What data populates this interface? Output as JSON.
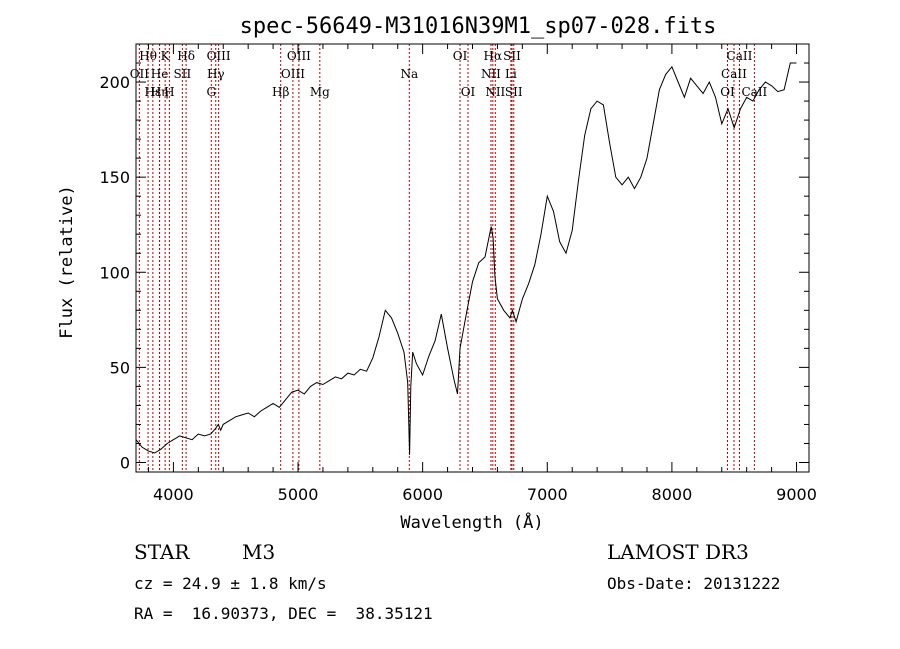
{
  "chart_data": {
    "type": "line",
    "title": "spec-56649-M31016N39M1_sp07-028.fits",
    "xlabel": "Wavelength (Å)",
    "ylabel": "Flux (relative)",
    "xlim": [
      3700,
      9100
    ],
    "ylim": [
      -5,
      220
    ],
    "xticks": [
      4000,
      5000,
      6000,
      7000,
      8000,
      9000
    ],
    "xtick_labels": [
      "4000",
      "5000",
      "6000",
      "7000",
      "8000",
      "9000"
    ],
    "yticks": [
      0,
      50,
      100,
      150,
      200
    ],
    "ytick_labels": [
      "0",
      "50",
      "100",
      "150",
      "200"
    ],
    "series": [
      {
        "name": "flux",
        "x": [
          3700,
          3750,
          3800,
          3850,
          3900,
          3950,
          4000,
          4050,
          4100,
          4150,
          4200,
          4250,
          4300,
          4340,
          4360,
          4380,
          4400,
          4450,
          4500,
          4550,
          4600,
          4650,
          4700,
          4750,
          4800,
          4850,
          4900,
          4950,
          5000,
          5050,
          5100,
          5150,
          5200,
          5250,
          5300,
          5350,
          5400,
          5450,
          5500,
          5550,
          5600,
          5650,
          5700,
          5750,
          5800,
          5850,
          5880,
          5895,
          5905,
          5920,
          5950,
          6000,
          6050,
          6100,
          6150,
          6200,
          6250,
          6280,
          6300,
          6350,
          6400,
          6450,
          6500,
          6550,
          6565,
          6580,
          6600,
          6650,
          6700,
          6720,
          6750,
          6800,
          6850,
          6900,
          6950,
          7000,
          7050,
          7100,
          7150,
          7200,
          7250,
          7300,
          7350,
          7400,
          7450,
          7500,
          7550,
          7600,
          7650,
          7700,
          7750,
          7800,
          7850,
          7900,
          7950,
          8000,
          8050,
          8100,
          8150,
          8200,
          8250,
          8300,
          8350,
          8400,
          8450,
          8500,
          8550,
          8600,
          8650,
          8700,
          8750,
          8800,
          8850,
          8900,
          8950,
          9000
        ],
        "values": [
          12,
          8,
          6,
          5,
          7,
          10,
          12,
          14,
          13,
          12,
          15,
          14,
          15,
          18,
          20,
          17,
          20,
          22,
          24,
          25,
          26,
          24,
          27,
          29,
          31,
          29,
          33,
          37,
          38,
          36,
          40,
          42,
          41,
          43,
          45,
          44,
          47,
          46,
          49,
          48,
          55,
          66,
          80,
          76,
          68,
          58,
          42,
          4,
          40,
          58,
          52,
          46,
          56,
          64,
          78,
          60,
          44,
          36,
          60,
          78,
          95,
          105,
          108,
          124,
          118,
          98,
          86,
          80,
          76,
          80,
          74,
          86,
          94,
          104,
          120,
          140,
          132,
          116,
          110,
          122,
          148,
          172,
          186,
          190,
          188,
          168,
          150,
          146,
          150,
          144,
          150,
          160,
          178,
          196,
          204,
          208,
          200,
          192,
          202,
          198,
          194,
          200,
          192,
          178,
          186,
          176,
          186,
          192,
          190,
          196,
          200,
          198,
          195,
          196,
          210,
          210
        ]
      }
    ],
    "spectral_lines": [
      {
        "label": "Hθ",
        "x": 3797,
        "row": 0
      },
      {
        "label": "K",
        "x": 3934,
        "row": 0
      },
      {
        "label": "Hδ",
        "x": 4102,
        "row": 0
      },
      {
        "label": "OIII",
        "x": 4363,
        "row": 0
      },
      {
        "label": "OIII",
        "x": 5007,
        "row": 0
      },
      {
        "label": "OI",
        "x": 6300,
        "row": 0
      },
      {
        "label": "Hα",
        "x": 6563,
        "row": 0
      },
      {
        "label": "SII",
        "x": 6717,
        "row": 0
      },
      {
        "label": "CaII",
        "x": 8542,
        "row": 0
      },
      {
        "label": "OII",
        "x": 3727,
        "row": 1
      },
      {
        "label": "He",
        "x": 3889,
        "row": 1
      },
      {
        "label": "SII",
        "x": 4072,
        "row": 1
      },
      {
        "label": "Hγ",
        "x": 4340,
        "row": 1
      },
      {
        "label": "OIII",
        "x": 4959,
        "row": 1
      },
      {
        "label": "Na",
        "x": 5893,
        "row": 1
      },
      {
        "label": "NII",
        "x": 6548,
        "row": 1
      },
      {
        "label": "Li",
        "x": 6708,
        "row": 1
      },
      {
        "label": "CaII",
        "x": 8498,
        "row": 1
      },
      {
        "label": "Hε",
        "x": 3835,
        "row": 2
      },
      {
        "label": "Hη",
        "x": 3889,
        "row": 2
      },
      {
        "label": "H",
        "x": 3968,
        "row": 2
      },
      {
        "label": "G",
        "x": 4304,
        "row": 2
      },
      {
        "label": "Hβ",
        "x": 4861,
        "row": 2
      },
      {
        "label": "Mg",
        "x": 5175,
        "row": 2
      },
      {
        "label": "OI",
        "x": 6364,
        "row": 2
      },
      {
        "label": "NII",
        "x": 6583,
        "row": 2
      },
      {
        "label": "SII",
        "x": 6731,
        "row": 2
      },
      {
        "label": "OI",
        "x": 8446,
        "row": 2
      },
      {
        "label": "CaII",
        "x": 8662,
        "row": 2
      }
    ]
  },
  "info": {
    "class": "STAR",
    "subclass": "M3",
    "survey": "LAMOST DR3",
    "cz": "cz = 24.9 ± 1.8 km/s",
    "obs_date": "Obs-Date: 20131222",
    "radec": "RA =  16.90373, DEC =  38.35121"
  }
}
